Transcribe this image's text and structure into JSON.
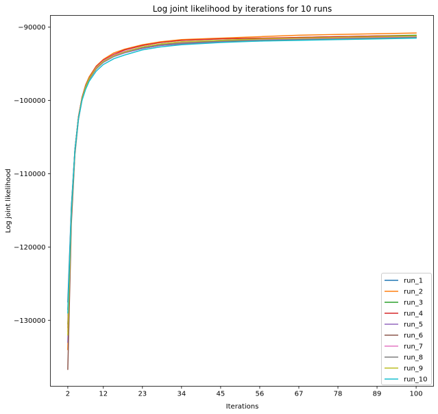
{
  "chart_data": {
    "type": "line",
    "title": "Log joint likelihood by iterations for 10 runs",
    "xlabel": "Iterations",
    "ylabel": "Log joint likelihood",
    "xlim": [
      -2.9,
      104.9
    ],
    "ylim": [
      -139000,
      -88400
    ],
    "xticks": [
      2,
      12,
      23,
      34,
      45,
      56,
      67,
      78,
      89,
      100
    ],
    "xtick_labels": [
      "2",
      "12",
      "23",
      "34",
      "45",
      "56",
      "67",
      "78",
      "89",
      "100"
    ],
    "yticks": [
      -130000,
      -120000,
      -110000,
      -100000,
      -90000
    ],
    "ytick_labels": [
      "−130000",
      "−120000",
      "−110000",
      "−100000",
      "−90000"
    ],
    "grid": false,
    "legend_position": "lower-right",
    "x": [
      2,
      3,
      4,
      5,
      6,
      7,
      8,
      10,
      12,
      15,
      18,
      23,
      28,
      34,
      45,
      56,
      67,
      78,
      89,
      100
    ],
    "series": [
      {
        "name": "run_1",
        "color": "#1f77b4",
        "values": [
          -127500,
          -114500,
          -106700,
          -102300,
          -99800,
          -98200,
          -97100,
          -95700,
          -94800,
          -94000,
          -93500,
          -92900,
          -92500,
          -92200,
          -91900,
          -91700,
          -91600,
          -91500,
          -91400,
          -91300
        ]
      },
      {
        "name": "run_2",
        "color": "#ff7f0e",
        "values": [
          -134000,
          -115800,
          -107000,
          -102300,
          -99600,
          -97900,
          -96800,
          -95300,
          -94400,
          -93500,
          -93000,
          -92400,
          -92000,
          -91700,
          -91500,
          -91300,
          -91100,
          -91000,
          -90900,
          -90800
        ]
      },
      {
        "name": "run_3",
        "color": "#2ca02c",
        "values": [
          -130500,
          -115000,
          -106800,
          -102300,
          -99700,
          -98100,
          -97000,
          -95600,
          -94700,
          -93900,
          -93300,
          -92700,
          -92300,
          -92000,
          -91800,
          -91600,
          -91400,
          -91300,
          -91200,
          -91100
        ]
      },
      {
        "name": "run_4",
        "color": "#d62728",
        "values": [
          -131000,
          -115200,
          -106800,
          -102200,
          -99600,
          -98000,
          -96900,
          -95400,
          -94500,
          -93700,
          -93100,
          -92500,
          -92100,
          -91800,
          -91600,
          -91500,
          -91400,
          -91300,
          -91200,
          -91200
        ]
      },
      {
        "name": "run_5",
        "color": "#9467bd",
        "values": [
          -133000,
          -115700,
          -107000,
          -102500,
          -99900,
          -98200,
          -97100,
          -95700,
          -94800,
          -94000,
          -93500,
          -92900,
          -92500,
          -92300,
          -92000,
          -91900,
          -91700,
          -91600,
          -91500,
          -91400
        ]
      },
      {
        "name": "run_6",
        "color": "#8c564b",
        "values": [
          -136700,
          -116800,
          -107400,
          -102600,
          -99900,
          -98300,
          -97100,
          -95600,
          -94700,
          -93900,
          -93400,
          -92800,
          -92400,
          -92100,
          -91900,
          -91800,
          -91700,
          -91600,
          -91500,
          -91400
        ]
      },
      {
        "name": "run_7",
        "color": "#e377c2",
        "values": [
          -131500,
          -115300,
          -106900,
          -102400,
          -99800,
          -98100,
          -97000,
          -95500,
          -94600,
          -93800,
          -93300,
          -92700,
          -92300,
          -92100,
          -91900,
          -91700,
          -91600,
          -91500,
          -91400,
          -91300
        ]
      },
      {
        "name": "run_8",
        "color": "#7f7f7f",
        "values": [
          -128500,
          -114700,
          -106700,
          -102300,
          -99700,
          -98100,
          -97000,
          -95600,
          -94700,
          -93900,
          -93400,
          -92800,
          -92400,
          -92200,
          -91900,
          -91800,
          -91700,
          -91600,
          -91500,
          -91400
        ]
      },
      {
        "name": "run_9",
        "color": "#bcbd22",
        "values": [
          -132000,
          -115500,
          -107000,
          -102400,
          -99800,
          -98200,
          -97000,
          -95600,
          -94700,
          -93900,
          -93400,
          -92700,
          -92300,
          -92000,
          -91800,
          -91600,
          -91500,
          -91400,
          -91300,
          -91200
        ]
      },
      {
        "name": "run_10",
        "color": "#17becf",
        "values": [
          -129000,
          -115000,
          -106900,
          -102500,
          -100000,
          -98500,
          -97400,
          -96000,
          -95100,
          -94300,
          -93800,
          -93100,
          -92700,
          -92400,
          -92100,
          -91900,
          -91800,
          -91700,
          -91600,
          -91500
        ]
      }
    ]
  }
}
